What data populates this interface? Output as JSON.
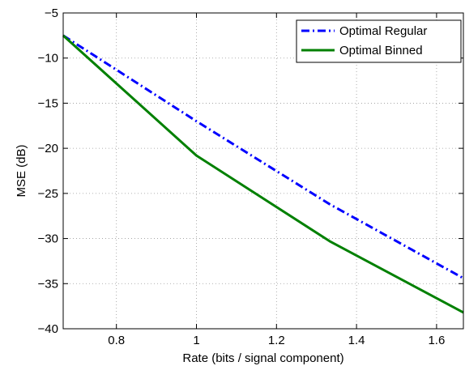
{
  "chart_data": {
    "type": "line",
    "title": "",
    "xlabel": "Rate (bits / signal component)",
    "ylabel": "MSE (dB)",
    "xlim": [
      0.667,
      1.667
    ],
    "ylim": [
      -40,
      -5
    ],
    "xticks": [
      0.8,
      1,
      1.2,
      1.4,
      1.6
    ],
    "xtick_labels": [
      "0.8",
      "1",
      "1.2",
      "1.4",
      "1.6"
    ],
    "yticks": [
      -40,
      -35,
      -30,
      -25,
      -20,
      -15,
      -10,
      -5
    ],
    "ytick_labels": [
      "−40",
      "−35",
      "−30",
      "−25",
      "−20",
      "−15",
      "−10",
      "−5"
    ],
    "grid": true,
    "legend_position": "top-right",
    "series": [
      {
        "name": "Optimal Regular",
        "color": "#0000ff",
        "style": "dash-dot",
        "x": [
          0.667,
          1.0,
          1.333,
          1.667
        ],
        "y": [
          -7.5,
          -17.0,
          -26.2,
          -34.4
        ]
      },
      {
        "name": "Optimal Binned",
        "color": "#008000",
        "style": "solid",
        "x": [
          0.667,
          1.0,
          1.333,
          1.667
        ],
        "y": [
          -7.5,
          -20.8,
          -30.3,
          -38.2
        ]
      }
    ]
  }
}
